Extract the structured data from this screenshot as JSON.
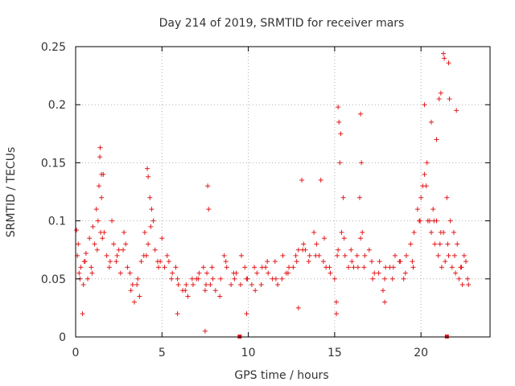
{
  "chart_data": {
    "type": "scatter",
    "title": "Day 214 of 2019, SRMTID for receiver mars",
    "xlabel": "GPS time / hours",
    "ylabel": "SRMTID / TECUs",
    "xlim": [
      0,
      24
    ],
    "ylim": [
      0,
      0.25
    ],
    "xticks": [
      0,
      5,
      10,
      15,
      20
    ],
    "xtick_labels": [
      "0",
      "5",
      "10",
      "15",
      "20"
    ],
    "yticks": [
      0,
      0.05,
      0.1,
      0.15,
      0.2,
      0.25
    ],
    "ytick_labels": [
      "0",
      "0.05",
      "0.1",
      "0.15",
      "0.2",
      "0.25"
    ],
    "grid": true,
    "marker": "+",
    "series": [
      {
        "name": "SRMTID",
        "color": "#e31a1c",
        "x": [
          0.05,
          0.15,
          0.3,
          0.45,
          0.6,
          0.8,
          1.0,
          1.2,
          1.35,
          1.5,
          1.65,
          1.8,
          2.0,
          2.2,
          2.4,
          2.6,
          2.8,
          3.0,
          3.2,
          3.4,
          3.6,
          3.8,
          4.0,
          4.2,
          4.4,
          4.6,
          4.8,
          5.0,
          5.3,
          5.6,
          5.9,
          6.2,
          6.5,
          6.8,
          7.1,
          7.4,
          7.6,
          7.8,
          8.1,
          8.4,
          8.7,
          9.0,
          9.3,
          9.6,
          9.9,
          10.2,
          10.5,
          10.8,
          11.1,
          11.4,
          11.7,
          12.0,
          12.3,
          12.6,
          12.9,
          13.2,
          13.5,
          13.8,
          14.1,
          14.4,
          14.7,
          15.0,
          15.2,
          15.4,
          15.6,
          15.8,
          16.0,
          16.3,
          16.5,
          16.7,
          17.0,
          17.3,
          17.6,
          17.9,
          18.2,
          18.5,
          18.8,
          19.1,
          19.4,
          19.6,
          19.8,
          20.0,
          20.2,
          20.4,
          20.6,
          20.8,
          21.0,
          21.2,
          21.4,
          21.6,
          21.8,
          22.0,
          22.2,
          22.4,
          22.6,
          0.1,
          0.2,
          0.5,
          0.7,
          0.9,
          1.1,
          1.3,
          1.45,
          1.6,
          2.1,
          2.5,
          2.9,
          3.3,
          3.7,
          4.1,
          4.3,
          4.5,
          4.9,
          5.4,
          5.8,
          6.4,
          7.0,
          7.5,
          7.9,
          8.6,
          9.2,
          9.8,
          10.4,
          11.0,
          11.6,
          12.2,
          12.8,
          13.3,
          13.9,
          14.5,
          15.1,
          15.3,
          15.5,
          16.1,
          16.45,
          16.6,
          17.2,
          17.8,
          18.4,
          19.0,
          19.5,
          19.9,
          20.1,
          20.3,
          20.5,
          20.7,
          20.9,
          21.1,
          21.3,
          21.5,
          21.7,
          21.9,
          22.1,
          22.3,
          22.5,
          22.7,
          0.25,
          0.55,
          0.95,
          1.25,
          1.55,
          1.95,
          2.35,
          2.75,
          3.15,
          3.55,
          3.95,
          4.35,
          4.75,
          5.15,
          5.55,
          5.95,
          6.35,
          6.75,
          7.15,
          7.55,
          7.95,
          8.35,
          8.75,
          9.15,
          9.55,
          9.95,
          10.35,
          10.75,
          11.15,
          11.55,
          11.95,
          12.35,
          12.75,
          13.15,
          13.55,
          13.95,
          14.35,
          14.75,
          15.15,
          15.55,
          15.95,
          16.35,
          16.75,
          17.15,
          17.55,
          17.95,
          18.35,
          18.75,
          19.15,
          19.55,
          19.95,
          20.35,
          20.75,
          21.15,
          21.55,
          21.95,
          22.35,
          22.75,
          1.4,
          1.42,
          1.5,
          4.15,
          4.2,
          7.65,
          7.7,
          15.2,
          15.25,
          15.35,
          16.5,
          16.55,
          20.2,
          20.6,
          20.9,
          21.05,
          21.15,
          21.3,
          21.35,
          21.6,
          21.65,
          22.05,
          0.4,
          7.5,
          15.1,
          17.9,
          5.9,
          12.9,
          9.9,
          13.1,
          14.2
        ],
        "y": [
          0.092,
          0.08,
          0.06,
          0.045,
          0.072,
          0.085,
          0.095,
          0.11,
          0.13,
          0.12,
          0.09,
          0.07,
          0.065,
          0.08,
          0.07,
          0.055,
          0.09,
          0.06,
          0.04,
          0.03,
          0.05,
          0.065,
          0.09,
          0.08,
          0.11,
          0.075,
          0.06,
          0.085,
          0.07,
          0.055,
          0.05,
          0.04,
          0.035,
          0.045,
          0.05,
          0.06,
          0.055,
          0.045,
          0.04,
          0.05,
          0.065,
          0.045,
          0.055,
          0.07,
          0.05,
          0.045,
          0.055,
          0.06,
          0.065,
          0.05,
          0.045,
          0.07,
          0.055,
          0.06,
          0.075,
          0.08,
          0.065,
          0.09,
          0.07,
          0.085,
          0.06,
          0.05,
          0.075,
          0.09,
          0.07,
          0.06,
          0.065,
          0.07,
          0.085,
          0.06,
          0.075,
          0.055,
          0.065,
          0.05,
          0.06,
          0.07,
          0.065,
          0.055,
          0.08,
          0.09,
          0.11,
          0.12,
          0.14,
          0.1,
          0.09,
          0.08,
          0.07,
          0.06,
          0.065,
          0.07,
          0.06,
          0.055,
          0.05,
          0.045,
          0.065,
          0.07,
          0.055,
          0.065,
          0.05,
          0.06,
          0.08,
          0.1,
          0.09,
          0.14,
          0.1,
          0.075,
          0.08,
          0.045,
          0.035,
          0.07,
          0.12,
          0.1,
          0.065,
          0.065,
          0.06,
          0.045,
          0.05,
          0.04,
          0.06,
          0.07,
          0.05,
          0.06,
          0.04,
          0.06,
          0.05,
          0.055,
          0.065,
          0.075,
          0.07,
          0.06,
          0.03,
          0.15,
          0.12,
          0.06,
          0.12,
          0.09,
          0.05,
          0.04,
          0.06,
          0.05,
          0.065,
          0.1,
          0.13,
          0.13,
          0.1,
          0.11,
          0.1,
          0.08,
          0.09,
          0.12,
          0.1,
          0.09,
          0.08,
          0.06,
          0.07,
          0.05,
          0.05,
          0.065,
          0.055,
          0.075,
          0.085,
          0.06,
          0.065,
          0.075,
          0.055,
          0.045,
          0.07,
          0.095,
          0.065,
          0.06,
          0.05,
          0.045,
          0.04,
          0.05,
          0.055,
          0.045,
          0.05,
          0.035,
          0.06,
          0.055,
          0.045,
          0.05,
          0.06,
          0.045,
          0.055,
          0.065,
          0.05,
          0.06,
          0.07,
          0.075,
          0.07,
          0.08,
          0.065,
          0.055,
          0.07,
          0.085,
          0.075,
          0.06,
          0.07,
          0.065,
          0.055,
          0.06,
          0.05,
          0.065,
          0.07,
          0.06,
          0.1,
          0.15,
          0.1,
          0.09,
          0.08,
          0.07,
          0.06,
          0.045,
          0.155,
          0.163,
          0.14,
          0.145,
          0.138,
          0.13,
          0.11,
          0.198,
          0.185,
          0.175,
          0.192,
          0.15,
          0.2,
          0.185,
          0.17,
          0.205,
          0.21,
          0.244,
          0.24,
          0.236,
          0.205,
          0.195,
          0.02,
          0.005,
          0.02,
          0.03,
          0.02,
          0.025,
          0.02,
          0.135,
          0.135
        ]
      }
    ],
    "zero_markers_x": [
      9.5,
      21.5
    ]
  }
}
